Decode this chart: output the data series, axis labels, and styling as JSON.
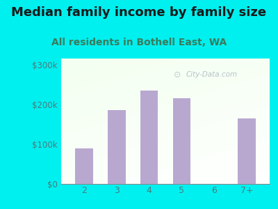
{
  "categories": [
    "2",
    "3",
    "4",
    "5",
    "6",
    "7+"
  ],
  "values": [
    90000,
    185000,
    235000,
    215000,
    0,
    165000
  ],
  "bar_color": "#b8a8d0",
  "background_color": "#00f0f0",
  "title": "Median family income by family size",
  "subtitle": "All residents in Bothell East, WA",
  "title_color": "#1a1a1a",
  "subtitle_color": "#3a7a5a",
  "tick_label_color": "#4a7a7a",
  "ylabel_ticks": [
    0,
    100000,
    200000,
    300000
  ],
  "ylabel_labels": [
    "$0",
    "$100k",
    "$200k",
    "$300k"
  ],
  "ylim": [
    0,
    315000
  ],
  "xlim": [
    0.3,
    6.7
  ],
  "watermark": "City-Data.com",
  "title_fontsize": 13,
  "subtitle_fontsize": 10
}
